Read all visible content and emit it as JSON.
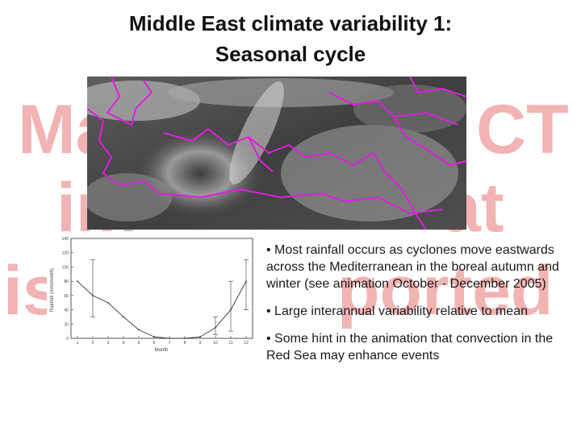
{
  "slide": {
    "title_line1": "Middle East climate variability 1:",
    "title_line2": "Seasonal cycle"
  },
  "watermark": {
    "line1_left": "Ma",
    "line1_right": "CT",
    "line2_left": "im",
    "line2_right": "at",
    "line3_left": "is",
    "line3_right": "ported",
    "color": "#f2b3b3"
  },
  "bullets": [
    "• Most rainfall occurs as cyclones move eastwards across the Mediterranean in the boreal autumn and winter (see animation October - December 2005)",
    "• Large interannual variability relative to mean",
    "• Some hint in the animation that convection in the Red Sea may enhance events"
  ],
  "rainfall_plot": {
    "ylabel": "Rainfall (mm/month)",
    "xlabel": "Month",
    "yticks": [
      "0",
      "20",
      "40",
      "60",
      "80",
      "100",
      "120",
      "140"
    ],
    "xticks": [
      "1",
      "2",
      "3",
      "4",
      "5",
      "6",
      "7",
      "8",
      "9",
      "10",
      "11",
      "12"
    ],
    "monthly_mean": [
      80,
      60,
      50,
      30,
      12,
      2,
      0,
      0,
      2,
      15,
      40,
      80
    ],
    "error_high": [
      null,
      110,
      null,
      null,
      null,
      null,
      null,
      null,
      null,
      30,
      80,
      110
    ],
    "error_low": [
      null,
      30,
      null,
      null,
      null,
      null,
      null,
      null,
      null,
      5,
      10,
      40
    ]
  }
}
